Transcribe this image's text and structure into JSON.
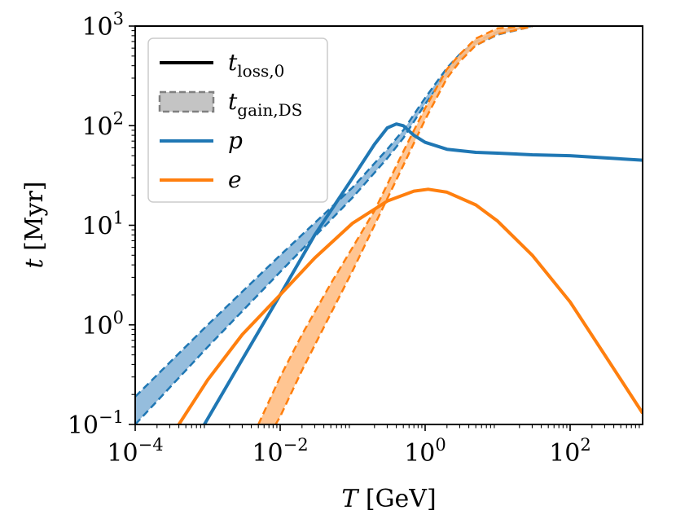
{
  "chart_data": {
    "type": "line",
    "x_scale": "log",
    "y_scale": "log",
    "xlim": [
      0.0001,
      1000
    ],
    "ylim": [
      0.1,
      1000
    ],
    "xlabel": "T [GeV]",
    "ylabel": "t [Myr]",
    "x_ticks": [
      {
        "value": 0.0001,
        "base": "10",
        "exp": "−4"
      },
      {
        "value": 0.01,
        "base": "10",
        "exp": "−2"
      },
      {
        "value": 1,
        "base": "10",
        "exp": "0"
      },
      {
        "value": 100,
        "base": "10",
        "exp": "2"
      }
    ],
    "y_ticks": [
      {
        "value": 0.1,
        "base": "10",
        "exp": "−1"
      },
      {
        "value": 1,
        "base": "10",
        "exp": "0"
      },
      {
        "value": 10,
        "base": "10",
        "exp": "1"
      },
      {
        "value": 100,
        "base": "10",
        "exp": "2"
      },
      {
        "value": 1000,
        "base": "10",
        "exp": "3"
      }
    ],
    "legend": {
      "position": "upper-left",
      "entries": [
        {
          "key": "loss",
          "name": "t",
          "subscript": "loss,0",
          "style": "solid",
          "color": "#000000"
        },
        {
          "key": "gain",
          "name": "t",
          "subscript": "gain,DS",
          "style": "dashed-band",
          "color": "#808080"
        },
        {
          "key": "p",
          "name": "p",
          "subscript": "",
          "style": "solid",
          "color": "#1f77b4"
        },
        {
          "key": "e",
          "name": "e",
          "subscript": "",
          "style": "solid",
          "color": "#ff7f0e"
        }
      ]
    },
    "series": [
      {
        "name": "p",
        "color": "#1f77b4",
        "loss": [
          [
            0.0009,
            0.1
          ],
          [
            0.003,
            0.45
          ],
          [
            0.01,
            2.0
          ],
          [
            0.03,
            8.0
          ],
          [
            0.1,
            30
          ],
          [
            0.2,
            65
          ],
          [
            0.3,
            95
          ],
          [
            0.4,
            104
          ],
          [
            0.5,
            100
          ],
          [
            0.7,
            80
          ],
          [
            1,
            68
          ],
          [
            2,
            58
          ],
          [
            5,
            54
          ],
          [
            10,
            53
          ],
          [
            30,
            51
          ],
          [
            100,
            50
          ],
          [
            300,
            47.5
          ],
          [
            1000,
            45
          ]
        ],
        "gain_band": {
          "x": [
            0.0001,
            0.001,
            0.01,
            0.1,
            0.3,
            0.5,
            1,
            2,
            3,
            5,
            10,
            30
          ],
          "upper": [
            0.19,
            1.0,
            5.0,
            24,
            58,
            90,
            190,
            380,
            520,
            700,
            880,
            1000
          ],
          "lower": [
            0.1,
            0.6,
            3.4,
            19,
            47,
            75,
            165,
            330,
            470,
            640,
            820,
            990
          ]
        }
      },
      {
        "name": "e",
        "color": "#ff7f0e",
        "loss": [
          [
            0.0004,
            0.1
          ],
          [
            0.001,
            0.28
          ],
          [
            0.003,
            0.8
          ],
          [
            0.01,
            2.0
          ],
          [
            0.03,
            4.7
          ],
          [
            0.1,
            10.5
          ],
          [
            0.3,
            17.5
          ],
          [
            0.7,
            22
          ],
          [
            1.1,
            23.0
          ],
          [
            2,
            21.5
          ],
          [
            5,
            16
          ],
          [
            10,
            11
          ],
          [
            30,
            5.0
          ],
          [
            100,
            1.7
          ],
          [
            300,
            0.5
          ],
          [
            1000,
            0.13
          ]
        ],
        "gain_band": {
          "x": [
            0.005,
            0.01,
            0.02,
            0.05,
            0.1,
            0.2,
            0.5,
            1,
            2,
            3,
            5,
            10,
            30
          ],
          "upper": [
            0.1,
            0.3,
            0.8,
            2.6,
            6.0,
            14,
            55,
            150,
            370,
            520,
            750,
            950,
            1000
          ],
          "lower": [
            0.05,
            0.12,
            0.35,
            1.3,
            3.5,
            10,
            40,
            115,
            300,
            440,
            640,
            830,
            990
          ]
        }
      }
    ]
  }
}
